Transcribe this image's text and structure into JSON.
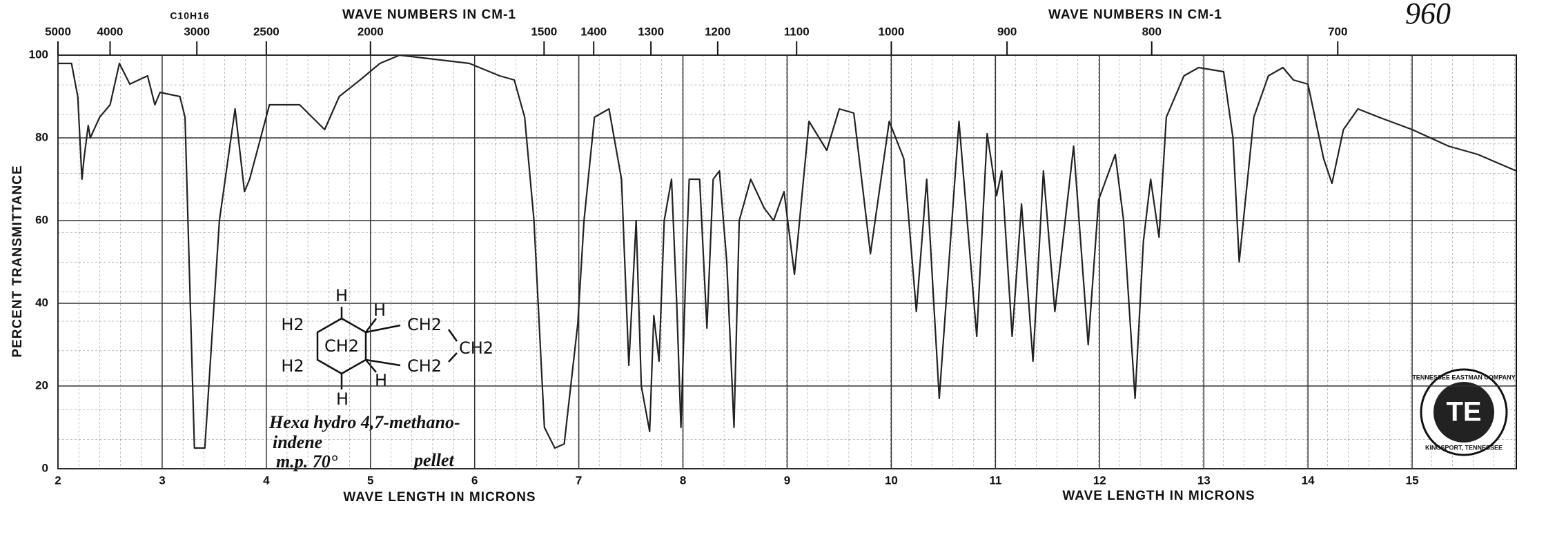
{
  "chart_data": {
    "type": "line",
    "top_title_left": "WAVE NUMBERS IN CM-1",
    "top_title_right": "WAVE NUMBERS IN CM-1",
    "formula": "C10H16",
    "spectrum_number": "960",
    "xlabel_left": "WAVE LENGTH IN MICRONS",
    "xlabel_right": "WAVE LENGTH IN MICRONS",
    "ylabel": "PERCENT TRANSMITTANCE",
    "compound_name_line1": "Hexa hydro 4,7-methano-",
    "compound_name_line2": "indene",
    "melting_point": "m.p. 70°",
    "sample": "pellet",
    "structure_labels": [
      "H",
      "H2",
      "H",
      "CH2",
      "CH2",
      "CH2",
      "H2",
      "CH2",
      "H",
      "H"
    ],
    "seal_text_top": "TENNESSEE EASTMAN COMPANY",
    "seal_text_bottom": "KINGSPORT, TENNESSEE",
    "seal_center": "TE",
    "color": "#222222",
    "grid": true,
    "xlim": [
      2,
      16
    ],
    "xticks": [
      2,
      3,
      4,
      5,
      6,
      7,
      8,
      9,
      10,
      11,
      12,
      13,
      14,
      15
    ],
    "x2ticks": [
      5000,
      4000,
      3000,
      2500,
      2000,
      1500,
      1400,
      1300,
      1200,
      1100,
      1000,
      900,
      800,
      700
    ],
    "ylim": [
      0,
      100
    ],
    "yticks": [
      0,
      20,
      40,
      60,
      80,
      100
    ],
    "x": [
      2.0,
      2.13,
      2.19,
      2.23,
      2.25,
      2.29,
      2.31,
      2.4,
      2.5,
      2.59,
      2.69,
      2.86,
      2.93,
      2.98,
      3.17,
      3.22,
      3.27,
      3.31,
      3.41,
      3.55,
      3.7,
      3.79,
      3.84,
      4.03,
      4.32,
      4.56,
      4.7,
      4.9,
      5.09,
      5.28,
      5.95,
      6.24,
      6.38,
      6.48,
      6.57,
      6.67,
      6.77,
      6.86,
      6.99,
      7.05,
      7.15,
      7.29,
      7.41,
      7.48,
      7.55,
      7.6,
      7.68,
      7.72,
      7.77,
      7.82,
      7.89,
      7.94,
      7.98,
      8.03,
      8.06,
      8.16,
      8.23,
      8.29,
      8.35,
      8.42,
      8.49,
      8.54,
      8.65,
      8.78,
      8.87,
      8.97,
      9.07,
      9.21,
      9.38,
      9.5,
      9.64,
      9.8,
      9.98,
      10.12,
      10.24,
      10.34,
      10.46,
      10.65,
      10.82,
      10.92,
      11.01,
      11.06,
      11.16,
      11.25,
      11.36,
      11.46,
      11.57,
      11.75,
      11.89,
      11.99,
      12.15,
      12.23,
      12.34,
      12.42,
      12.49,
      12.57,
      12.64,
      12.81,
      12.95,
      13.19,
      13.28,
      13.34,
      13.48,
      13.62,
      13.76,
      13.86,
      14.0,
      14.15,
      14.23,
      14.34,
      14.48,
      14.68,
      15.0,
      15.35,
      15.63,
      16.0
    ],
    "values": [
      98,
      98,
      90,
      70,
      75,
      83,
      80,
      85,
      88,
      98,
      93,
      95,
      88,
      91,
      90,
      85,
      40,
      5,
      5,
      60,
      87,
      67,
      70,
      88,
      88,
      82,
      90,
      94,
      98,
      100,
      98,
      95,
      94,
      85,
      60,
      10,
      5,
      6,
      35,
      60,
      85,
      87,
      70,
      25,
      60,
      20,
      9,
      37,
      26,
      60,
      70,
      40,
      10,
      50,
      70,
      70,
      34,
      70,
      72,
      50,
      10,
      60,
      70,
      63,
      60,
      67,
      47,
      84,
      77,
      87,
      86,
      52,
      84,
      75,
      38,
      70,
      17,
      84,
      32,
      81,
      66,
      72,
      32,
      64,
      26,
      72,
      38,
      78,
      30,
      65,
      76,
      60,
      17,
      55,
      70,
      56,
      85,
      95,
      97,
      96,
      80,
      50,
      85,
      95,
      97,
      94,
      93,
      75,
      69,
      82,
      87,
      85,
      82,
      78,
      76,
      72
    ]
  }
}
